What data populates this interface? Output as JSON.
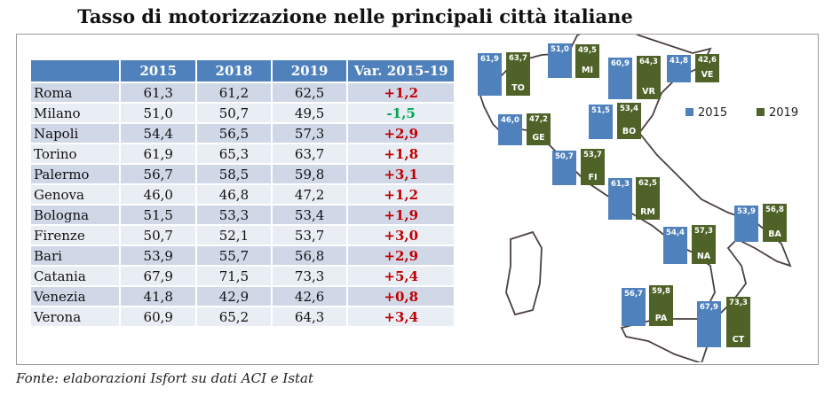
{
  "title": "Tasso di motorizzazione   nelle principali città italiane",
  "table": {
    "headers": [
      "",
      "2015",
      "2018",
      "2019",
      "Var. 2015-19"
    ],
    "rows": [
      {
        "city": "Roma",
        "y2015": "61,3",
        "y2018": "61,2",
        "y2019": "62,5",
        "var": "+1,2"
      },
      {
        "city": "Milano",
        "y2015": "51,0",
        "y2018": "50,7",
        "y2019": "49,5",
        "var": "-1,5"
      },
      {
        "city": "Napoli",
        "y2015": "54,4",
        "y2018": "56,5",
        "y2019": "57,3",
        "var": "+2,9"
      },
      {
        "city": "Torino",
        "y2015": "61,9",
        "y2018": "65,3",
        "y2019": "63,7",
        "var": "+1,8"
      },
      {
        "city": "Palermo",
        "y2015": "56,7",
        "y2018": "58,5",
        "y2019": "59,8",
        "var": "+3,1"
      },
      {
        "city": "Genova",
        "y2015": "46,0",
        "y2018": "46,8",
        "y2019": "47,2",
        "var": "+1,2"
      },
      {
        "city": "Bologna",
        "y2015": "51,5",
        "y2018": "53,3",
        "y2019": "53,4",
        "var": "+1,9"
      },
      {
        "city": "Firenze",
        "y2015": "50,7",
        "y2018": "52,1",
        "y2019": "53,7",
        "var": "+3,0"
      },
      {
        "city": "Bari",
        "y2015": "53,9",
        "y2018": "55,7",
        "y2019": "56,8",
        "var": "+2,9"
      },
      {
        "city": "Catania",
        "y2015": "67,9",
        "y2018": "71,5",
        "y2019": "73,3",
        "var": "+5,4"
      },
      {
        "city": "Venezia",
        "y2015": "41,8",
        "y2018": "42,9",
        "y2019": "42,6",
        "var": "+0,8"
      },
      {
        "city": "Verona",
        "y2015": "60,9",
        "y2018": "65,2",
        "y2019": "64,3",
        "var": "+3,4"
      }
    ],
    "colors": {
      "header": "#4f81bd",
      "positive": "#c00000",
      "negative": "#00a650"
    }
  },
  "chart_data": {
    "type": "bar",
    "title": "",
    "legend": {
      "position": "top-right",
      "entries": [
        "2015",
        "2019"
      ]
    },
    "colors": {
      "2015": "#4f81bd",
      "2019": "#4f6228"
    },
    "categories": [
      "TO",
      "MI",
      "VR",
      "VE",
      "GE",
      "BO",
      "FI",
      "RM",
      "BA",
      "NA",
      "PA",
      "CT"
    ],
    "series": [
      {
        "name": "2015",
        "values": [
          61.9,
          51.0,
          60.9,
          41.8,
          46.0,
          51.5,
          50.7,
          61.3,
          53.9,
          54.4,
          56.7,
          67.9
        ],
        "labels": [
          "61,9",
          "51,0",
          "60,9",
          "41,8",
          "46,0",
          "51,5",
          "50,7",
          "61,3",
          "53,9",
          "54,4",
          "56,7",
          "67,9"
        ]
      },
      {
        "name": "2019",
        "values": [
          63.7,
          49.5,
          64.3,
          42.6,
          47.2,
          53.4,
          53.7,
          62.5,
          56.8,
          57.3,
          59.8,
          73.3
        ],
        "labels": [
          "63,7",
          "49,5",
          "64,3",
          "42,6",
          "47,2",
          "53,4",
          "53,7",
          "62,5",
          "56,8",
          "57,3",
          "59,8",
          "73,3"
        ]
      }
    ]
  },
  "source": "Fonte: elaborazioni Isfort su dati ACI e Istat"
}
